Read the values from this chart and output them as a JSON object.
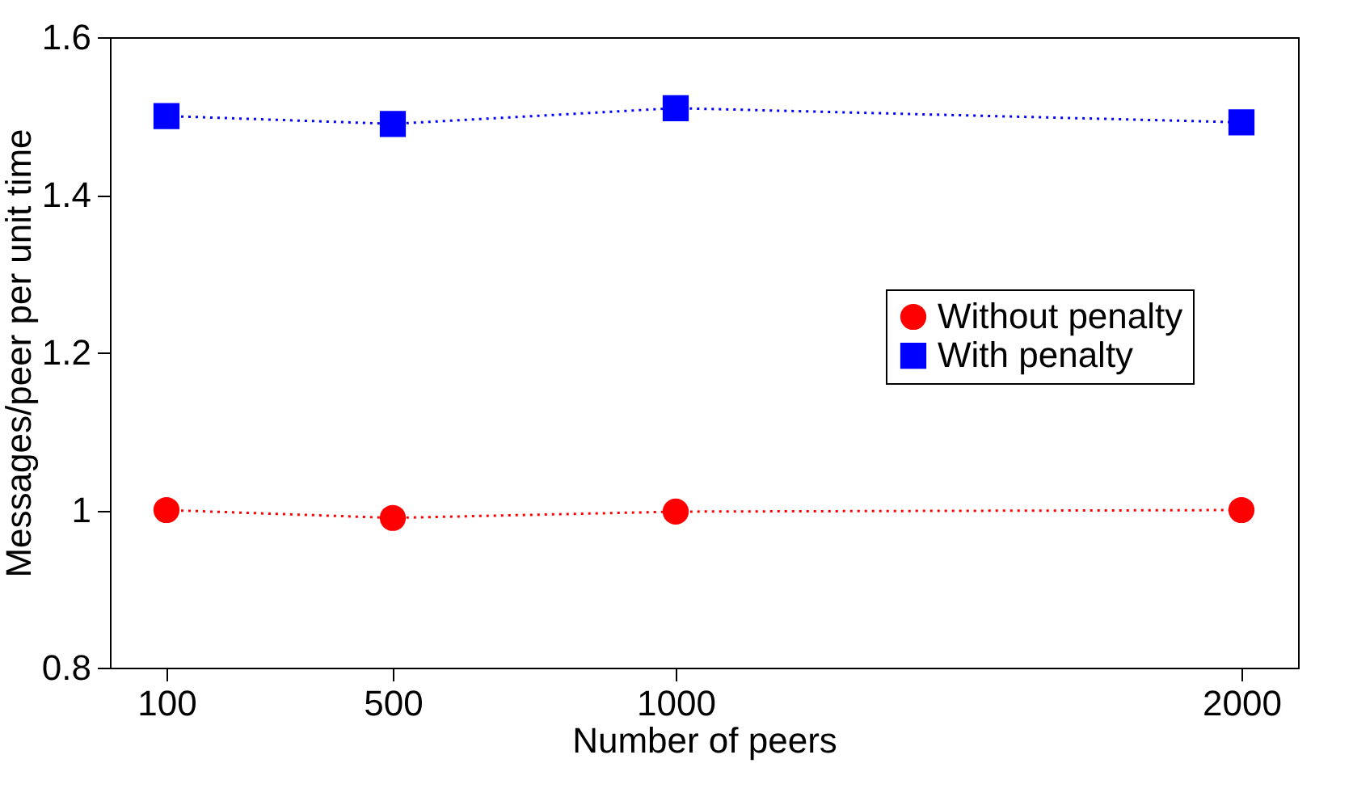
{
  "chart_data": {
    "type": "line",
    "xlabel": "Number of peers",
    "ylabel": "Messages/peer per unit time",
    "x": [
      100,
      500,
      1000,
      2000
    ],
    "xlim": [
      0,
      2100
    ],
    "xticks": [
      100,
      500,
      1000,
      2000
    ],
    "ylim": [
      0.8,
      1.6
    ],
    "yticks": [
      0.8,
      1,
      1.2,
      1.4,
      1.6
    ],
    "grid": false,
    "legend": "right",
    "line_style": "dotted",
    "series": [
      {
        "name": "Without penalty",
        "color": "#ff0000",
        "marker": "circle",
        "values": [
          1.0,
          0.99,
          0.998,
          1.0
        ]
      },
      {
        "name": "With penalty",
        "color": "#0000ff",
        "marker": "square",
        "values": [
          1.5,
          1.49,
          1.51,
          1.492
        ]
      }
    ]
  }
}
